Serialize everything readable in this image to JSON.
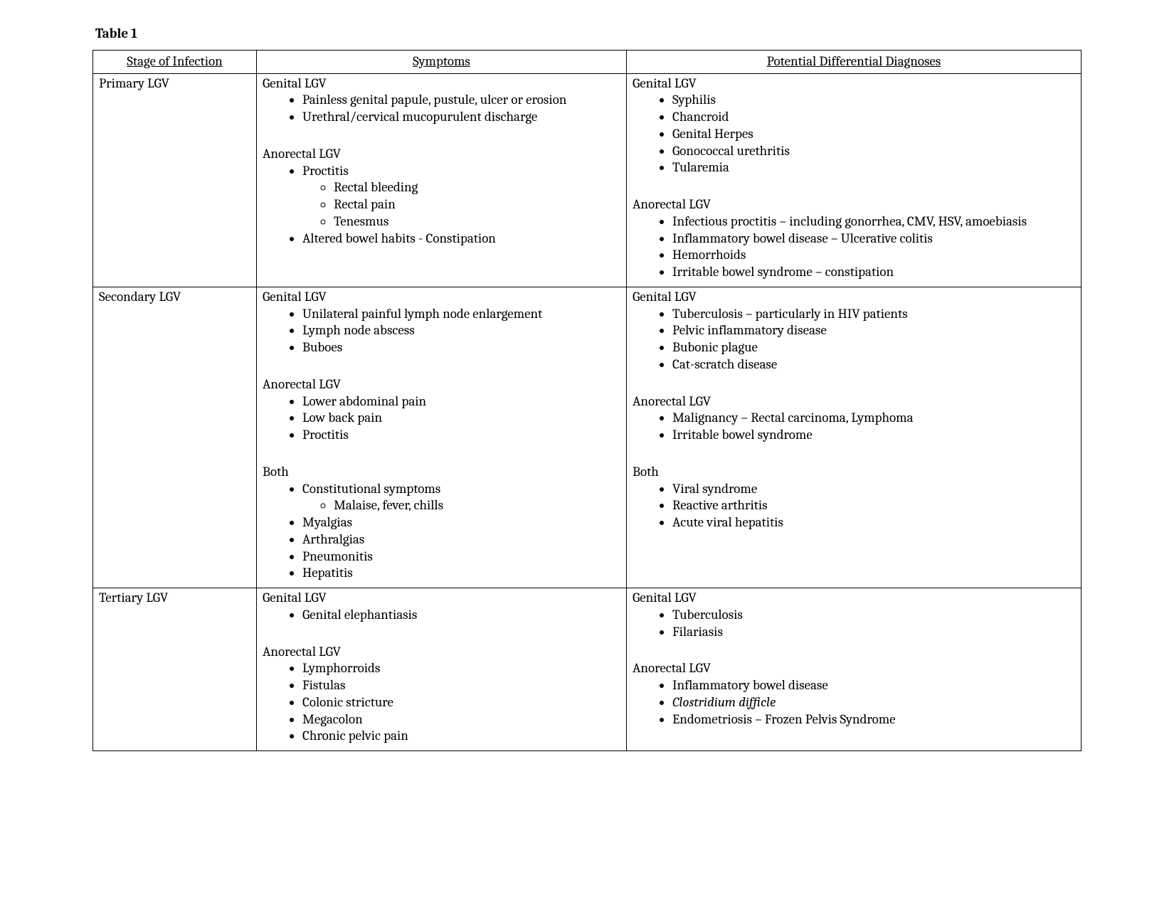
{
  "title": "Table 1",
  "columns": [
    "Stage of Infection",
    "Symptoms",
    "Potential Differential Diagnoses"
  ],
  "rows": [
    {
      "stage": "Primary LGV",
      "symptoms": [
        {
          "heading": "Genital LGV",
          "items": [
            {
              "text": "Painless genital papule, pustule, ulcer or erosion"
            },
            {
              "text": "Urethral/cervical mucopurulent discharge"
            }
          ],
          "gap_after": true
        },
        {
          "heading": "Anorectal LGV",
          "items": [
            {
              "text": "Proctitis",
              "sub": [
                {
                  "text": "Rectal bleeding"
                },
                {
                  "text": "Rectal pain"
                },
                {
                  "text": "Tenesmus"
                }
              ]
            },
            {
              "text": "Altered bowel habits - Constipation"
            }
          ]
        }
      ],
      "diagnoses": [
        {
          "heading": "Genital LGV",
          "items": [
            {
              "text": "Syphilis"
            },
            {
              "text": "Chancroid"
            },
            {
              "text": "Genital Herpes"
            },
            {
              "text": "Gonococcal urethritis"
            },
            {
              "text": "Tularemia"
            }
          ],
          "gap_after": true
        },
        {
          "heading": "Anorectal LGV",
          "items": [
            {
              "text": "Infectious proctitis – including gonorrhea, CMV, HSV, amoebiasis"
            },
            {
              "text": "Inflammatory bowel disease – Ulcerative colitis"
            },
            {
              "text": "Hemorrhoids"
            },
            {
              "text": "Irritable bowel syndrome – constipation"
            }
          ]
        }
      ]
    },
    {
      "stage": "Secondary LGV",
      "symptoms": [
        {
          "heading": "Genital LGV",
          "items": [
            {
              "text": "Unilateral painful lymph node enlargement"
            },
            {
              "text": "Lymph node abscess"
            },
            {
              "text": "Buboes"
            }
          ],
          "gap_after": true
        },
        {
          "heading": "Anorectal LGV",
          "items": [
            {
              "text": "Lower abdominal pain"
            },
            {
              "text": "Low back pain"
            },
            {
              "text": "Proctitis"
            }
          ],
          "gap_after": true
        },
        {
          "heading": "Both",
          "items": [
            {
              "text": "Constitutional symptoms",
              "sub": [
                {
                  "text": "Malaise, fever, chills"
                }
              ]
            },
            {
              "text": "Myalgias"
            },
            {
              "text": "Arthralgias"
            },
            {
              "text": "Pneumonitis"
            },
            {
              "text": "Hepatitis"
            }
          ]
        }
      ],
      "diagnoses": [
        {
          "heading": "Genital LGV",
          "items": [
            {
              "text": "Tuberculosis – particularly in HIV patients"
            },
            {
              "text": "Pelvic inflammatory disease"
            },
            {
              "text": "Bubonic plague"
            },
            {
              "text": "Cat-scratch disease"
            }
          ],
          "gap_after": true
        },
        {
          "heading": "Anorectal LGV",
          "items": [
            {
              "text": "Malignancy – Rectal carcinoma, Lymphoma"
            },
            {
              "text": "Irritable bowel syndrome"
            }
          ],
          "gap_after": true
        },
        {
          "heading": "Both",
          "items": [
            {
              "text": "Viral syndrome"
            },
            {
              "text": "Reactive arthritis"
            },
            {
              "text": "Acute viral hepatitis"
            }
          ]
        }
      ]
    },
    {
      "stage": "Tertiary LGV",
      "symptoms": [
        {
          "heading": "Genital LGV",
          "items": [
            {
              "text": "Genital elephantiasis"
            }
          ],
          "gap_after": true
        },
        {
          "heading": "Anorectal LGV",
          "items": [
            {
              "text": "Lymphorroids"
            },
            {
              "text": "Fistulas"
            },
            {
              "text": "Colonic stricture"
            },
            {
              "text": "Megacolon"
            },
            {
              "text": "Chronic pelvic pain"
            }
          ]
        }
      ],
      "diagnoses": [
        {
          "heading": "Genital LGV",
          "items": [
            {
              "text": "Tuberculosis"
            },
            {
              "text": "Filariasis"
            }
          ],
          "gap_after": true
        },
        {
          "heading": "Anorectal LGV",
          "items": [
            {
              "text": "Inflammatory bowel disease"
            },
            {
              "text": "Clostridium difficle",
              "italic": true
            },
            {
              "text": "Endometriosis – Frozen Pelvis Syndrome"
            }
          ]
        }
      ]
    }
  ]
}
